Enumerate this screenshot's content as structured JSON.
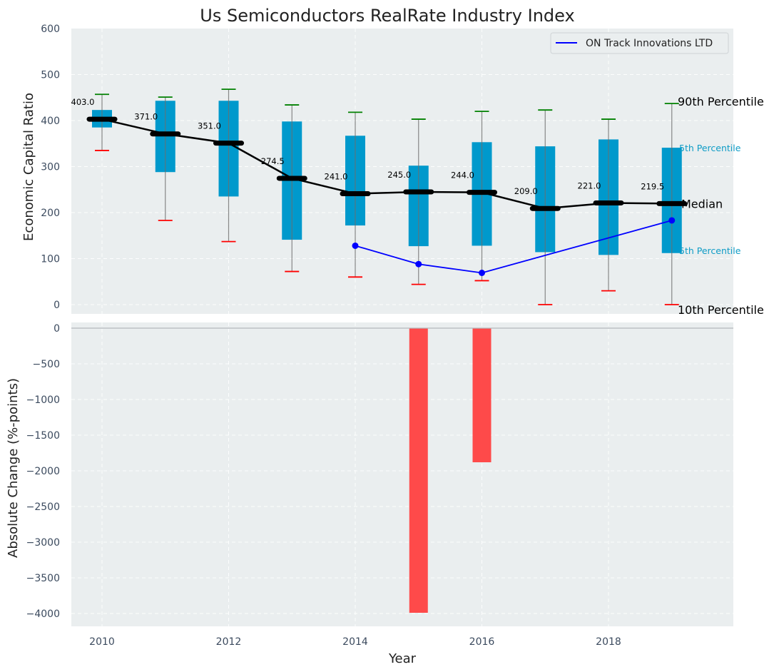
{
  "chart_data": {
    "type": "box+line+bar",
    "title": "Us Semiconductors RealRate Industry Index",
    "xlabel": "Year",
    "x_ticks": [
      "2010",
      "2012",
      "2014",
      "2016",
      "2018"
    ],
    "xlim": [
      2009.5,
      2019.95
    ],
    "top_panel": {
      "ylabel": "Economic Capital Ratio",
      "ylim": [
        0,
        600
      ],
      "y_ticks": [
        "0",
        "100",
        "200",
        "300",
        "400",
        "500",
        "600"
      ],
      "grid": true,
      "years": [
        2010,
        2011,
        2012,
        2013,
        2014,
        2015,
        2016,
        2017,
        2018,
        2019
      ],
      "p90": [
        457,
        451,
        468,
        434,
        418,
        403,
        420,
        423,
        403,
        437
      ],
      "p75": [
        423,
        443,
        443,
        398,
        367,
        302,
        353,
        344,
        359,
        341
      ],
      "median": [
        403.0,
        371.0,
        351.0,
        274.5,
        241.0,
        245.0,
        244.0,
        209.0,
        221.0,
        219.5
      ],
      "median_labels": [
        "403.0",
        "371.0",
        "351.0",
        "274.5",
        "241.0",
        "245.0",
        "244.0",
        "209.0",
        "221.0",
        "219.5"
      ],
      "p25": [
        385,
        288,
        235,
        141,
        172,
        127,
        128,
        114,
        108,
        112
      ],
      "p10": [
        335,
        183,
        137,
        72,
        60,
        44,
        52,
        0,
        30,
        0
      ],
      "company_series": {
        "name": "ON Track Innovations LTD",
        "years": [
          2014,
          2015,
          2016,
          2019
        ],
        "values": [
          128,
          88,
          69,
          183
        ]
      },
      "legend": {
        "entries": [
          "ON Track Innovations LTD"
        ],
        "placement": "top-right"
      },
      "annotations": [
        "90th Percentile",
        "75th Percentile",
        "Median",
        "25th Percentile",
        "10th Percentile"
      ],
      "annotation_visible_text": [
        "90th Percentile",
        "5th Percentile",
        "Median",
        "5th Percentile",
        "10th Percentile"
      ]
    },
    "bottom_panel": {
      "type": "bar",
      "ylabel": "Absolute Change (%-points)",
      "ylim": [
        -4180,
        0
      ],
      "y_ticks": [
        "0",
        "−500",
        "−1000",
        "−1500",
        "−2000",
        "−2500",
        "−3000",
        "−3500",
        "−4000"
      ],
      "y_tick_values": [
        0,
        -500,
        -1000,
        -1500,
        -2000,
        -2500,
        -3000,
        -3500,
        -4000
      ],
      "grid": true,
      "years": [
        2015,
        2016
      ],
      "values": [
        -3990,
        -1880
      ]
    },
    "top_y_tick_values": [
      0,
      100,
      200,
      300,
      400,
      500,
      600
    ],
    "x_tick_values": [
      2010,
      2012,
      2014,
      2016,
      2018
    ]
  },
  "colors": {
    "panel_bg": "#eaeeef",
    "box": "#0099cc",
    "whisker_top": "#008000",
    "whisker_bottom": "#ff0000",
    "median_line": "#000000",
    "company_line": "#0000ff",
    "bar": "#ff4040",
    "annotation_small": "#0f9cc6"
  }
}
